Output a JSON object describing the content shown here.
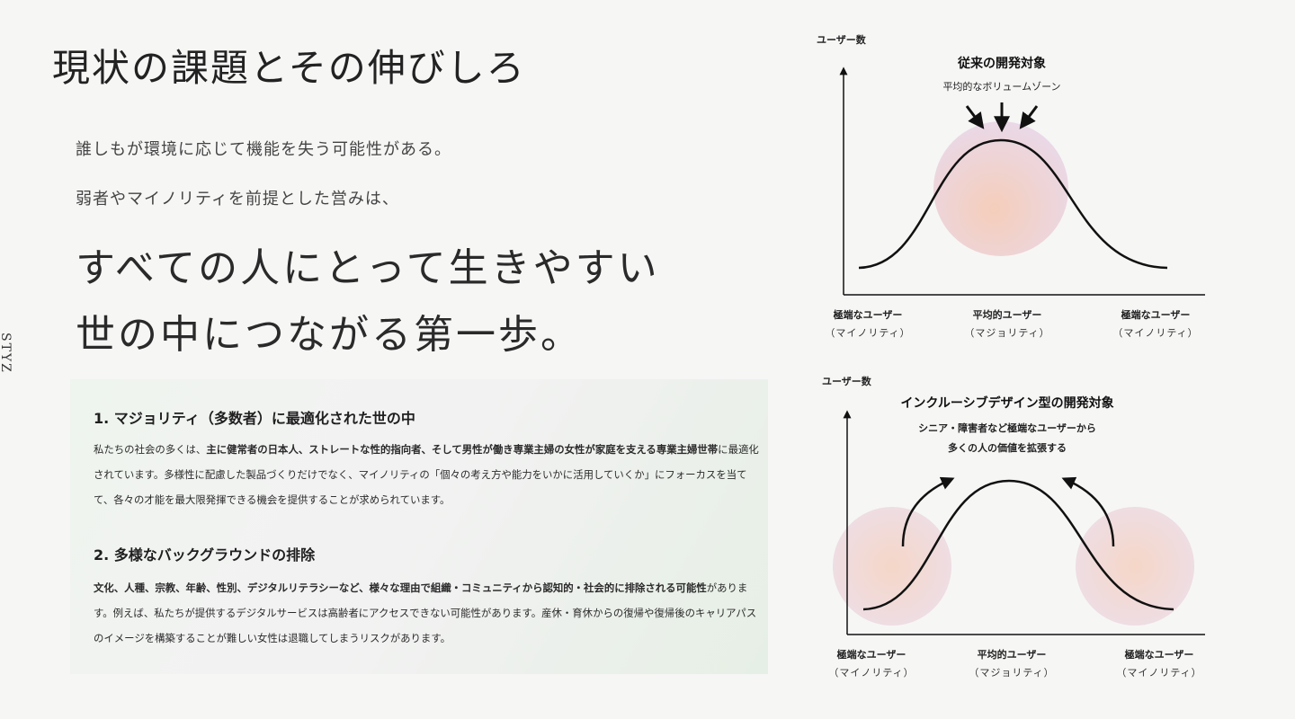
{
  "brand": {
    "logo": "STYZ"
  },
  "title": "現状の課題とその伸びしろ",
  "lead": {
    "line1": "誰しもが環境に応じて機能を失う可能性がある。",
    "line2": "弱者やマイノリティを前提とした営みは、"
  },
  "headline": {
    "line1": "すべての人にとって生きやすい",
    "line2": "世の中につながる第一歩。"
  },
  "sections": [
    {
      "title": "1. マジョリティ（多数者）に最適化された世の中",
      "body_parts": [
        "私たちの社会の多くは、",
        "主に健常者の日本人、ストレートな性的指向者、そして男性が働き専業主婦の女性が家庭を支える専業主婦世帯",
        "に最適化されています。多様性に配慮した製品づくりだけでなく、マイノリティの「個々の考え方や能力をいかに活用していくか」にフォーカスを当てて、各々の才能を最大限発揮できる機会を提供することが求められています。"
      ]
    },
    {
      "title": "2. 多様なバックグラウンドの排除",
      "body_parts": [
        "文化、人種、宗教、年齢、性別、デジタルリテラシーなど、様々な理由で組織・コミュニティから認知的・社会的に排除される可能性",
        "があります。例えば、私たちが提供するデジタルサービスは高齢者にアクセスできない可能性があります。産休・育休からの復帰や復帰後のキャリアパスのイメージを構築することが難しい女性は退職してしまうリスクがあります。"
      ]
    }
  ],
  "diagram_top": {
    "y_label": "ユーザー数",
    "title": "従来の開発対象",
    "subtitle": "平均的なボリュームゾーン",
    "x_labels": [
      {
        "main": "極端なユーザー",
        "sub": "（マイノリティ）"
      },
      {
        "main": "平均的ユーザー",
        "sub": "（マジョリティ）"
      },
      {
        "main": "極端なユーザー",
        "sub": "（マイノリティ）"
      }
    ],
    "colors": {
      "curve": "#111111",
      "blob_a": "#f5c9b4",
      "blob_b": "#e7d6ea"
    }
  },
  "diagram_bottom": {
    "y_label": "ユーザー数",
    "title": "インクルーシブデザイン型の開発対象",
    "note_line1": "シニア・障害者など極端なユーザーから",
    "note_line2": "多くの人の価値を拡張する",
    "x_labels": [
      {
        "main": "極端なユーザー",
        "sub": "（マイノリティ）"
      },
      {
        "main": "平均的ユーザー",
        "sub": "（マジョリティ）"
      },
      {
        "main": "極端なユーザー",
        "sub": "（マイノリティ）"
      }
    ],
    "colors": {
      "curve": "#111111",
      "blob_a": "#f5c9b4",
      "blob_b": "#e7d6ea"
    }
  }
}
